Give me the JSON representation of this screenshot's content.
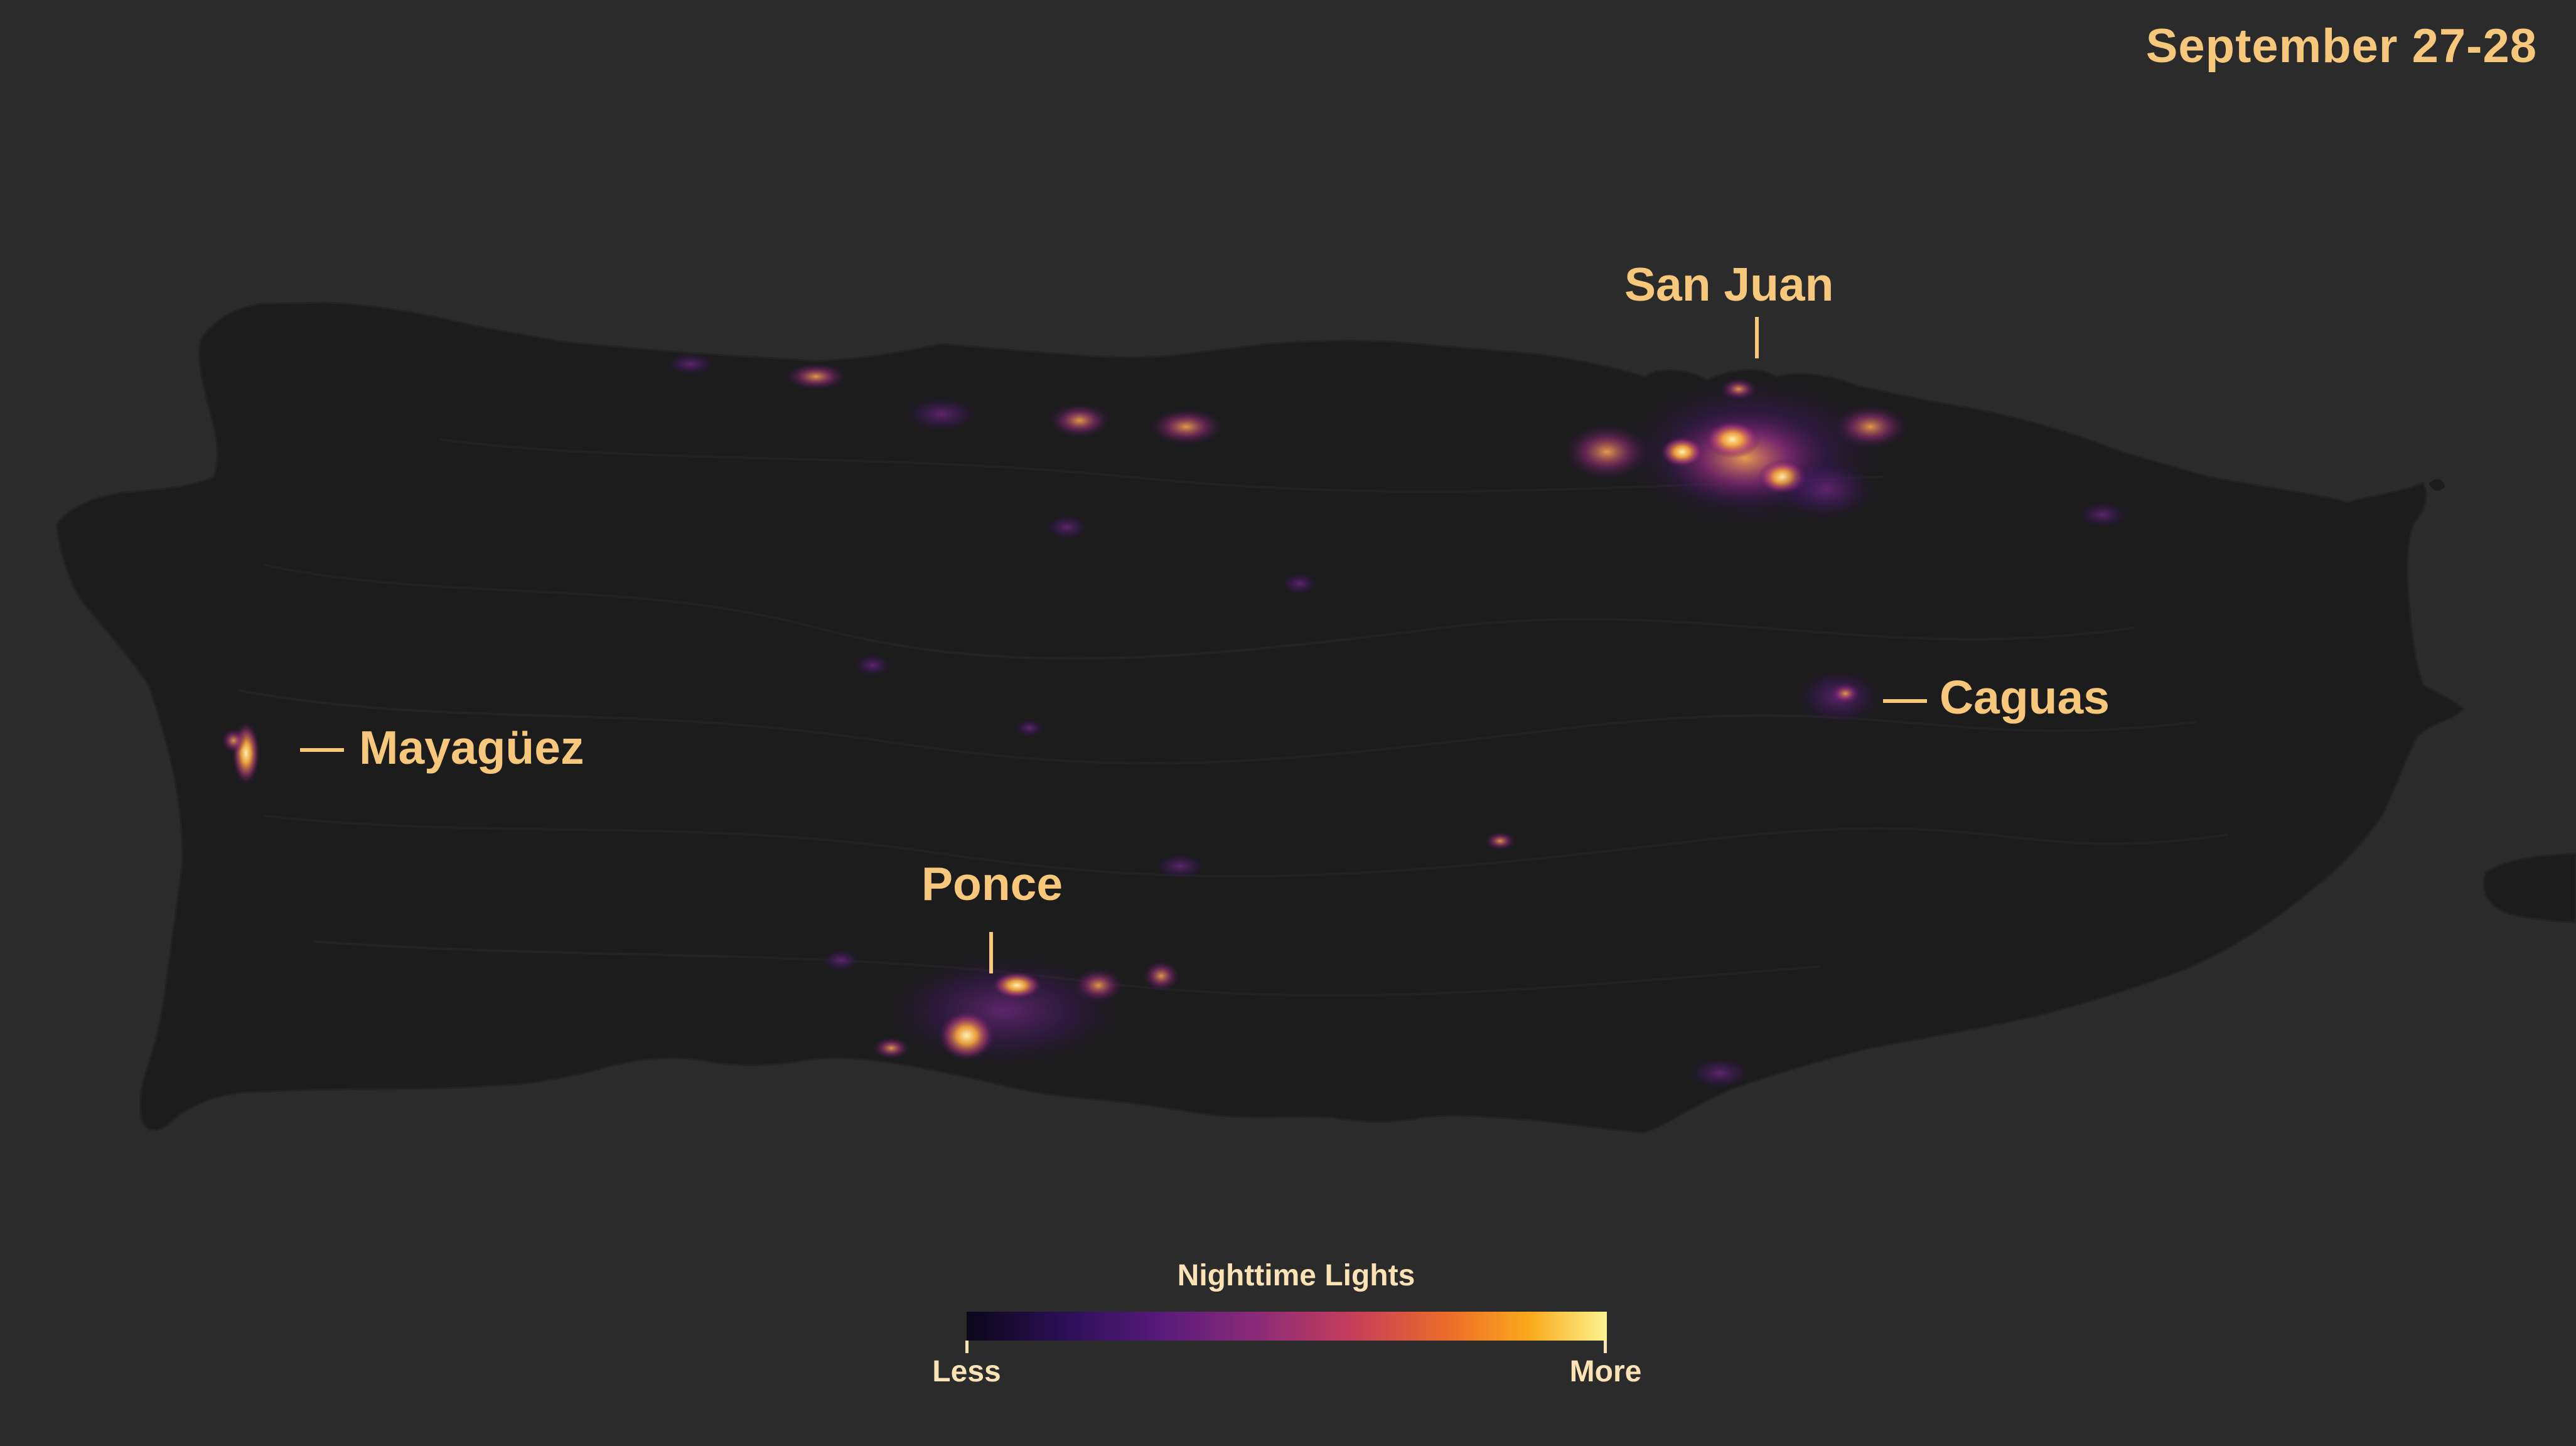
{
  "date": "September 27-28",
  "cities": {
    "san_juan": "San Juan",
    "caguas": "Caguas",
    "mayaguez": "Mayagüez",
    "ponce": "Ponce"
  },
  "legend": {
    "title": "Nighttime Lights",
    "less": "Less",
    "more": "More"
  },
  "colors": {
    "background": "#2b2b2b",
    "land": "#1c1c1c",
    "label": "#f7c77c"
  }
}
